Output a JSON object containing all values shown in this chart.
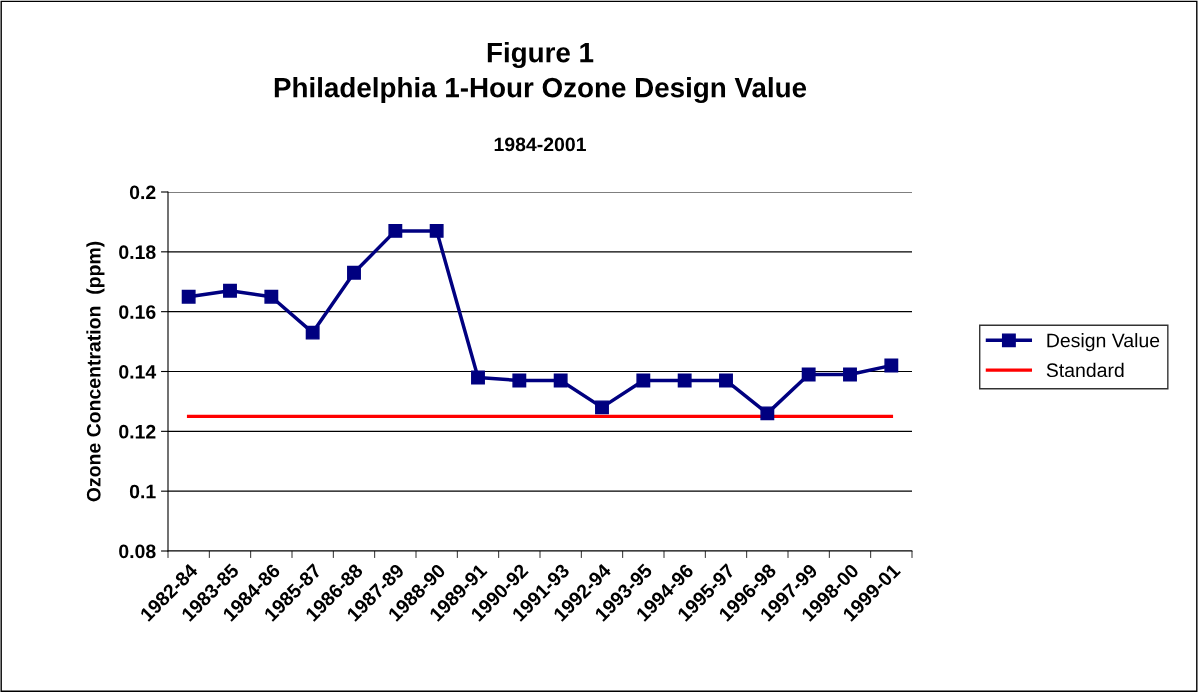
{
  "chart_data": {
    "type": "line",
    "title": "Figure 1\nPhiladelphia 1-Hour Ozone Design Value",
    "subtitle": "1984-2001",
    "ylabel": "Ozone Concentration  (ppm)",
    "categories": [
      "1982-84",
      "1983-85",
      "1984-86",
      "1985-87",
      "1986-88",
      "1987-89",
      "1988-90",
      "1989-91",
      "1990-92",
      "1991-93",
      "1992-94",
      "1993-95",
      "1994-96",
      "1995-97",
      "1996-98",
      "1997-99",
      "1998-00",
      "1999-01"
    ],
    "series": [
      {
        "name": "Design Value",
        "color": "#000080",
        "marker": "square",
        "values": [
          0.165,
          0.167,
          0.165,
          0.153,
          0.173,
          0.187,
          0.187,
          0.138,
          0.137,
          0.137,
          0.128,
          0.137,
          0.137,
          0.137,
          0.126,
          0.139,
          0.139,
          0.142
        ]
      }
    ],
    "ref_lines": [
      {
        "axis": "y",
        "value": 0.125,
        "label": "Standard",
        "color": "#ff0000"
      }
    ],
    "ylim": [
      0.08,
      0.2
    ],
    "yticks": [
      0.08,
      0.1,
      0.12,
      0.14,
      0.16,
      0.18,
      0.2
    ],
    "grid": "y",
    "legend": "right"
  }
}
